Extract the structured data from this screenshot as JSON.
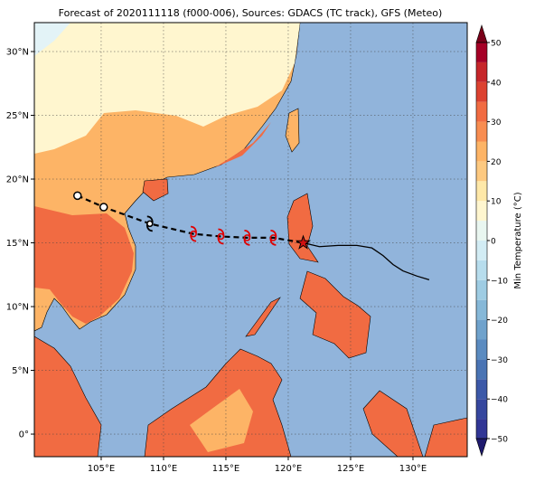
{
  "map": {
    "title": "Forecast of 2020111118 (f000-006), Sources: GDACS (TC track), GFS (Meteo)",
    "lon_range": [
      99.64,
      134.35
    ],
    "lat_range": [
      -1.77,
      32.27
    ],
    "lon_ticks": [
      {
        "value": 105,
        "label": "105°E"
      },
      {
        "value": 110,
        "label": "110°E"
      },
      {
        "value": 115,
        "label": "115°E"
      },
      {
        "value": 120,
        "label": "120°E"
      },
      {
        "value": 125,
        "label": "125°E"
      },
      {
        "value": 130,
        "label": "130°E"
      }
    ],
    "lat_ticks": [
      {
        "value": 0,
        "label": "0°"
      },
      {
        "value": 5,
        "label": "5°N"
      },
      {
        "value": 10,
        "label": "10°N"
      },
      {
        "value": 15,
        "label": "15°N"
      },
      {
        "value": 20,
        "label": "20°N"
      },
      {
        "value": 25,
        "label": "25°N"
      },
      {
        "value": 30,
        "label": "30°N"
      }
    ],
    "forecast_track": {
      "lon": [
        103.1,
        105.2,
        108.9,
        112.4,
        114.6,
        116.7,
        118.8,
        121.2
      ],
      "lat": [
        18.7,
        17.8,
        16.5,
        15.7,
        15.5,
        15.4,
        15.4,
        15.0
      ]
    },
    "observed_track": {
      "lon": [
        121.2,
        122.5,
        124.0,
        125.5,
        126.7,
        127.6,
        128.4,
        129.2,
        130.3,
        131.3
      ],
      "lat": [
        15.0,
        14.7,
        14.8,
        14.8,
        14.6,
        14.0,
        13.3,
        12.8,
        12.4,
        12.1
      ]
    },
    "colorbar": {
      "label": "Min Temperature (°C)",
      "range": [
        -50,
        50
      ],
      "ticks": [
        {
          "value": -50,
          "label": "−50"
        },
        {
          "value": -40,
          "label": "−40"
        },
        {
          "value": -30,
          "label": "−30"
        },
        {
          "value": -20,
          "label": "−20"
        },
        {
          "value": -10,
          "label": "−10"
        },
        0,
        10,
        20,
        30,
        40,
        50
      ],
      "levels": [
        -50,
        -45,
        -40,
        -35,
        -30,
        -25,
        -20,
        -15,
        -10,
        -5,
        0,
        5,
        10,
        15,
        20,
        25,
        30,
        35,
        40,
        45,
        50
      ],
      "colors": [
        "#313695",
        "#36479e",
        "#3c59a8",
        "#4a74b4",
        "#5b8bc0",
        "#6fa2cc",
        "#86b8d8",
        "#9ecce3",
        "#b7dded",
        "#d2ecf4",
        "#e9f6f0",
        "#fff6cf",
        "#fee8a8",
        "#fdc980",
        "#fdb466",
        "#f88d51",
        "#f16b42",
        "#dc4230",
        "#c6262a",
        "#a50026"
      ],
      "under_color": "#1f1a6e",
      "over_color": "#7a0019"
    }
  }
}
